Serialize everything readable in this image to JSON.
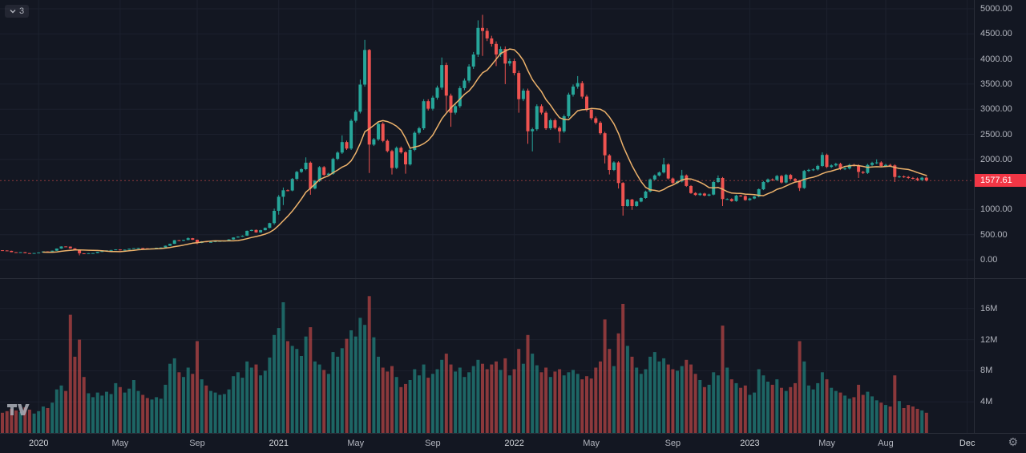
{
  "legend": {
    "count": "3"
  },
  "icons": {
    "gear": "⚙",
    "chevron_down": "chevron-down",
    "tv_logo": "tradingview-mark"
  },
  "colors": {
    "background": "#131722",
    "grid": "#1c212e",
    "separator": "#2a2e39",
    "axis_text": "#b2b5be",
    "axis_text_major": "#d6d9de",
    "up": "#26a69a",
    "down": "#ef5350",
    "volume_opacity": 0.55,
    "price_line": "rgba(239,83,80,0.55)",
    "badge_bg": "#f23645",
    "badge_text": "#ffffff"
  },
  "chart_data": {
    "type": "candlestick_with_volume",
    "timeframe": "weekly",
    "last_price": 1577.61,
    "last_price_label": "1577.61",
    "price_axis": {
      "min": 0,
      "max": 5000,
      "labels": [
        {
          "value": 5000,
          "text": "5000.00"
        },
        {
          "value": 4500,
          "text": "4500.00"
        },
        {
          "value": 4000,
          "text": "4000.00"
        },
        {
          "value": 3500,
          "text": "3500.00"
        },
        {
          "value": 3000,
          "text": "3000.00"
        },
        {
          "value": 2500,
          "text": "2500.00"
        },
        {
          "value": 2000,
          "text": "2000.00"
        },
        {
          "value": 1000,
          "text": "1000.00"
        },
        {
          "value": 500,
          "text": "500.00"
        },
        {
          "value": 0,
          "text": "0.00"
        }
      ]
    },
    "volume_axis": {
      "unit": "millions",
      "labels": [
        {
          "value": 16,
          "text": "16M"
        },
        {
          "value": 12,
          "text": "12M"
        },
        {
          "value": 8,
          "text": "8M"
        },
        {
          "value": 4,
          "text": "4M"
        }
      ]
    },
    "time_axis": {
      "domain_weeks": 215,
      "ticks": [
        {
          "label": "2020",
          "week": 8,
          "major": true
        },
        {
          "label": "May",
          "week": 26,
          "major": false
        },
        {
          "label": "Sep",
          "week": 43,
          "major": false
        },
        {
          "label": "2021",
          "week": 61,
          "major": true
        },
        {
          "label": "May",
          "week": 78,
          "major": false
        },
        {
          "label": "Sep",
          "week": 95,
          "major": false
        },
        {
          "label": "2022",
          "week": 113,
          "major": true
        },
        {
          "label": "May",
          "week": 130,
          "major": false
        },
        {
          "label": "Sep",
          "week": 148,
          "major": false
        },
        {
          "label": "2023",
          "week": 165,
          "major": true
        },
        {
          "label": "May",
          "week": 182,
          "major": false
        },
        {
          "label": "Aug",
          "week": 195,
          "major": false
        },
        {
          "label": "Dec",
          "week": 213,
          "major": true
        }
      ]
    },
    "ma": {
      "type": "sma",
      "period": 10,
      "color": "#edb26b"
    },
    "candles_format": "[close, volume_millions, high_or_null, low_or_null]; open = previous close",
    "candles": [
      [
        186,
        2.6
      ],
      [
        178,
        2.8
      ],
      [
        152,
        3.1
      ],
      [
        147,
        2.9
      ],
      [
        151,
        2.7
      ],
      [
        132,
        3.3
      ],
      [
        128,
        3.0
      ],
      [
        134,
        2.5
      ],
      [
        145,
        2.8
      ],
      [
        166,
        3.4
      ],
      [
        162,
        3.2
      ],
      [
        180,
        3.9
      ],
      [
        223,
        5.6
      ],
      [
        265,
        6.1
      ],
      [
        262,
        5.4
      ],
      [
        227,
        15.2
      ],
      [
        199,
        9.8
      ],
      [
        128,
        12.0,
        205,
        88
      ],
      [
        123,
        7.2
      ],
      [
        131,
        5.1
      ],
      [
        134,
        4.6
      ],
      [
        158,
        5.2
      ],
      [
        171,
        4.8
      ],
      [
        187,
        5.3
      ],
      [
        194,
        5.0
      ],
      [
        206,
        6.4
      ],
      [
        188,
        5.9
      ],
      [
        201,
        5.2
      ],
      [
        220,
        5.7
      ],
      [
        231,
        6.8
      ],
      [
        235,
        5.4
      ],
      [
        229,
        4.9
      ],
      [
        221,
        4.5
      ],
      [
        226,
        4.3
      ],
      [
        239,
        4.6
      ],
      [
        245,
        4.4
      ],
      [
        279,
        6.2
      ],
      [
        318,
        8.9
      ],
      [
        390,
        9.6
      ],
      [
        379,
        7.8
      ],
      [
        395,
        7.2
      ],
      [
        430,
        8.4,
        445,
        null
      ],
      [
        398,
        7.6
      ],
      [
        335,
        11.8,
        null,
        310
      ],
      [
        366,
        6.9
      ],
      [
        353,
        6.1
      ],
      [
        354,
        5.4
      ],
      [
        370,
        5.2
      ],
      [
        374,
        4.9
      ],
      [
        378,
        5.0
      ],
      [
        405,
        5.6
      ],
      [
        444,
        7.3
      ],
      [
        462,
        7.8
      ],
      [
        480,
        7.1
      ],
      [
        576,
        9.2
      ],
      [
        595,
        8.4
      ],
      [
        545,
        8.8
      ],
      [
        590,
        7.4
      ],
      [
        636,
        8.0
      ],
      [
        730,
        9.7
      ],
      [
        975,
        12.6,
        1020,
        700
      ],
      [
        1255,
        13.5,
        1290,
        900
      ],
      [
        1385,
        16.8,
        1440,
        1090
      ],
      [
        1380,
        11.8
      ],
      [
        1610,
        11.2
      ],
      [
        1750,
        10.8
      ],
      [
        1805,
        9.9
      ],
      [
        1935,
        12.4,
        2040,
        null
      ],
      [
        1420,
        13.6,
        null,
        1295
      ],
      [
        1570,
        9.2
      ],
      [
        1845,
        8.8
      ],
      [
        1690,
        8.1
      ],
      [
        1715,
        7.6
      ],
      [
        2010,
        10.4
      ],
      [
        2135,
        9.8
      ],
      [
        2345,
        10.9,
        2480,
        null
      ],
      [
        2215,
        12.1
      ],
      [
        2770,
        13.2
      ],
      [
        2950,
        12.4
      ],
      [
        3490,
        14.8,
        3590,
        null
      ],
      [
        4180,
        13.9,
        4380,
        null
      ],
      [
        2295,
        17.6,
        4200,
        1730
      ],
      [
        2400,
        12.3
      ],
      [
        2710,
        9.8
      ],
      [
        2370,
        8.4
      ],
      [
        2165,
        7.9
      ],
      [
        1830,
        8.6,
        null,
        1700
      ],
      [
        2230,
        7.2
      ],
      [
        2140,
        5.9
      ],
      [
        1900,
        6.3,
        null,
        1715
      ],
      [
        2190,
        6.8
      ],
      [
        2530,
        8.2
      ],
      [
        2620,
        7.4
      ],
      [
        3160,
        8.8
      ],
      [
        3010,
        7.1
      ],
      [
        3230,
        7.6
      ],
      [
        3430,
        8.2
      ],
      [
        3880,
        9.4,
        4030,
        null
      ],
      [
        3270,
        10.2,
        null,
        2950
      ],
      [
        2930,
        8.8,
        null,
        2650
      ],
      [
        3060,
        7.9
      ],
      [
        3420,
        8.4
      ],
      [
        3570,
        7.2
      ],
      [
        3850,
        7.8
      ],
      [
        4090,
        8.6
      ],
      [
        4620,
        9.4,
        4770,
        null
      ],
      [
        4560,
        8.9,
        4880,
        4060
      ],
      [
        4410,
        8.2
      ],
      [
        4300,
        8.8
      ],
      [
        4090,
        9.2,
        null,
        3860
      ],
      [
        4200,
        8.1
      ],
      [
        3910,
        9.6,
        null,
        3500
      ],
      [
        3960,
        7.4
      ],
      [
        3720,
        8.2
      ],
      [
        3200,
        10.8,
        null,
        2930
      ],
      [
        3370,
        8.9
      ],
      [
        2560,
        12.6,
        null,
        2310
      ],
      [
        2600,
        10.2,
        null,
        2160
      ],
      [
        3060,
        8.7
      ],
      [
        2930,
        7.8
      ],
      [
        2620,
        8.4
      ],
      [
        2780,
        7.2
      ],
      [
        2630,
        7.9
      ],
      [
        2560,
        8.2,
        null,
        2330
      ],
      [
        2860,
        7.4
      ],
      [
        3290,
        7.8
      ],
      [
        3450,
        8.1
      ],
      [
        3520,
        7.6,
        3660,
        null
      ],
      [
        3250,
        6.9
      ],
      [
        2990,
        7.3
      ],
      [
        2820,
        7.0
      ],
      [
        2730,
        8.4
      ],
      [
        2520,
        9.2
      ],
      [
        2080,
        14.6,
        null,
        1920
      ],
      [
        1790,
        10.8,
        null,
        1700
      ],
      [
        1940,
        8.6
      ],
      [
        1530,
        12.8,
        null,
        1420
      ],
      [
        1070,
        16.6,
        null,
        880
      ],
      [
        1200,
        11.2
      ],
      [
        1070,
        9.8,
        null,
        995
      ],
      [
        1160,
        8.4
      ],
      [
        1230,
        7.6
      ],
      [
        1360,
        8.2
      ],
      [
        1600,
        9.8
      ],
      [
        1680,
        10.4
      ],
      [
        1740,
        9.2
      ],
      [
        1900,
        9.6,
        2030,
        null
      ],
      [
        1620,
        8.8
      ],
      [
        1530,
        8.2
      ],
      [
        1560,
        8.0
      ],
      [
        1680,
        8.6,
        1790,
        null
      ],
      [
        1470,
        9.4
      ],
      [
        1330,
        8.8
      ],
      [
        1290,
        7.6
      ],
      [
        1320,
        6.8
      ],
      [
        1280,
        5.9
      ],
      [
        1300,
        6.2
      ],
      [
        1550,
        7.8
      ],
      [
        1630,
        7.4,
        1680,
        null
      ],
      [
        1210,
        13.8,
        null,
        1070
      ],
      [
        1210,
        8.4
      ],
      [
        1170,
        6.9
      ],
      [
        1280,
        6.4
      ],
      [
        1270,
        5.8
      ],
      [
        1190,
        6.1
      ],
      [
        1220,
        4.9
      ],
      [
        1260,
        5.2
      ],
      [
        1405,
        8.2
      ],
      [
        1550,
        7.4
      ],
      [
        1600,
        6.6
      ],
      [
        1590,
        6.2
      ],
      [
        1670,
        6.9
      ],
      [
        1540,
        5.8
      ],
      [
        1690,
        5.4
      ],
      [
        1610,
        5.9
      ],
      [
        1570,
        6.4
      ],
      [
        1430,
        11.8,
        null,
        1370
      ],
      [
        1770,
        9.2
      ],
      [
        1790,
        6.1
      ],
      [
        1800,
        5.6
      ],
      [
        1870,
        6.4
      ],
      [
        2090,
        7.8,
        2140,
        null
      ],
      [
        1850,
        6.9
      ],
      [
        1880,
        5.8
      ],
      [
        1910,
        5.4
      ],
      [
        1810,
        5.2
      ],
      [
        1820,
        4.8
      ],
      [
        1890,
        4.4
      ],
      [
        1880,
        4.6
      ],
      [
        1750,
        6.2,
        null,
        1630
      ],
      [
        1730,
        4.9
      ],
      [
        1890,
        5.3
      ],
      [
        1930,
        4.7
      ],
      [
        1940,
        4.2,
        2000,
        null
      ],
      [
        1870,
        3.9
      ],
      [
        1890,
        3.6
      ],
      [
        1880,
        3.4
      ],
      [
        1650,
        7.4,
        null,
        1550
      ],
      [
        1660,
        4.1
      ],
      [
        1650,
        3.2
      ],
      [
        1630,
        3.6
      ],
      [
        1620,
        3.4
      ],
      [
        1590,
        3.1
      ],
      [
        1635,
        2.9
      ],
      [
        1577.61,
        2.6,
        null,
        1560
      ]
    ]
  }
}
